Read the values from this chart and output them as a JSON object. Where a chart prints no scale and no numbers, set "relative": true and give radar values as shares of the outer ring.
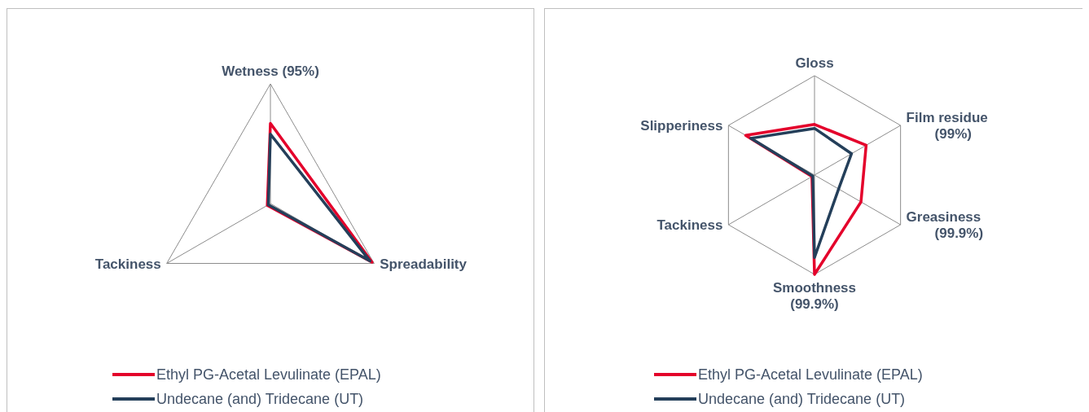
{
  "chart_data": [
    {
      "type": "radar",
      "categories": [
        "Wetness (95%)",
        "Spreadability",
        "Tackiness"
      ],
      "relative": true,
      "grid": true,
      "legend": "bottom",
      "series": [
        {
          "name": "Ethyl PG-Acetal Levulinate (EPAL)",
          "color": "#e4002b",
          "values": [
            0.67,
            0.98,
            0.03
          ]
        },
        {
          "name": "Undecane (and) Tridecane (UT)",
          "color": "#243f5a",
          "values": [
            0.58,
            0.96,
            0.02
          ]
        }
      ]
    },
    {
      "type": "radar",
      "categories": [
        "Gloss",
        "Film residue\n(99%)",
        "Greasiness\n(99.9%)",
        "Smoothness\n(99.9%)",
        "Tackiness",
        "Slipperiness"
      ],
      "relative": true,
      "grid": true,
      "legend": "bottom",
      "series": [
        {
          "name": "Ethyl PG-Acetal Levulinate (EPAL)",
          "color": "#e4002b",
          "values": [
            0.51,
            0.6,
            0.54,
            1.0,
            0.03,
            0.8
          ]
        },
        {
          "name": "Undecane (and) Tridecane (UT)",
          "color": "#243f5a",
          "values": [
            0.47,
            0.43,
            0.28,
            0.83,
            0.02,
            0.74
          ]
        }
      ]
    }
  ]
}
